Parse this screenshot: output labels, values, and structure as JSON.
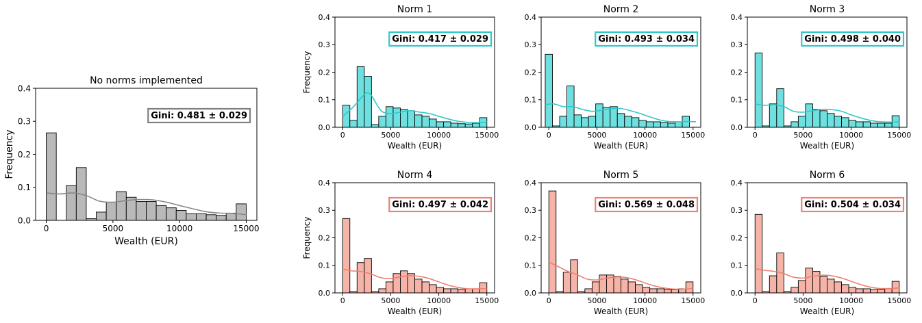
{
  "colors": {
    "gray_fill": "#b9b9b9",
    "gray_line": "#888888",
    "gray_box": "#7f7f7f",
    "teal_fill": "#6fe0e0",
    "teal_line": "#2ec8c8",
    "teal_box": "#2ec8c8",
    "salmon_fill": "#f6b3a8",
    "salmon_line": "#f08070",
    "salmon_box": "#f08070"
  },
  "chart_data": [
    {
      "type": "bar",
      "id": "no_norms",
      "title": "No norms implemented",
      "xlabel": "Wealth (EUR)",
      "ylabel": "Frequency",
      "annotation": "Gini: 0.481 ± 0.029",
      "color_key": "gray",
      "xlim": [
        -800,
        15800
      ],
      "ylim": [
        0,
        0.4
      ],
      "xticks": [
        0,
        5000,
        10000,
        15000
      ],
      "xticklabels": [
        "0",
        "5000",
        "10000",
        "15000"
      ],
      "yticks": [
        0.0,
        0.1,
        0.2,
        0.3,
        0.4
      ],
      "yticklabels": [
        "0.0",
        "0.1",
        "0.2",
        "0.3",
        "0.4"
      ],
      "bin_start": 0,
      "bin_width": 750,
      "values": [
        0.265,
        0,
        0.105,
        0.16,
        0.005,
        0.025,
        0.055,
        0.087,
        0.07,
        0.057,
        0.057,
        0.045,
        0.038,
        0.03,
        0.02,
        0.02,
        0.017,
        0.015,
        0.022,
        0.05
      ],
      "kde_x": [
        0,
        1000,
        2000,
        3000,
        4000,
        5000,
        6000,
        7000,
        8000,
        9000,
        10000,
        11000,
        12000,
        13000,
        14000,
        15000
      ],
      "kde_y": [
        0.083,
        0.08,
        0.083,
        0.075,
        0.058,
        0.055,
        0.06,
        0.063,
        0.062,
        0.055,
        0.045,
        0.035,
        0.026,
        0.022,
        0.021,
        0.017
      ]
    },
    {
      "type": "bar",
      "id": "norm1",
      "title": "Norm 1",
      "xlabel": "Wealth (EUR)",
      "ylabel": "Frequency",
      "annotation": "Gini: 0.417 ± 0.029",
      "color_key": "teal",
      "xlim": [
        -800,
        15800
      ],
      "ylim": [
        0,
        0.4
      ],
      "xticks": [
        0,
        5000,
        10000,
        15000
      ],
      "xticklabels": [
        "0",
        "5000",
        "10000",
        "15000"
      ],
      "yticks": [
        0.0,
        0.1,
        0.2,
        0.3,
        0.4
      ],
      "yticklabels": [
        "0.0",
        "0.1",
        "0.2",
        "0.3",
        "0.4"
      ],
      "bin_start": 0,
      "bin_width": 750,
      "values": [
        0.08,
        0.025,
        0.22,
        0.185,
        0.01,
        0.04,
        0.075,
        0.07,
        0.065,
        0.06,
        0.045,
        0.04,
        0.03,
        0.02,
        0.02,
        0.015,
        0.013,
        0.012,
        0.015,
        0.035
      ],
      "kde_x": [
        0,
        1000,
        2000,
        2500,
        3000,
        4000,
        5000,
        6000,
        7000,
        8000,
        9000,
        10000,
        11000,
        12000,
        13000,
        14000,
        15000
      ],
      "kde_y": [
        0.04,
        0.07,
        0.11,
        0.125,
        0.115,
        0.06,
        0.05,
        0.055,
        0.06,
        0.055,
        0.05,
        0.04,
        0.03,
        0.022,
        0.018,
        0.017,
        0.018
      ]
    },
    {
      "type": "bar",
      "id": "norm2",
      "title": "Norm 2",
      "xlabel": "Wealth (EUR)",
      "ylabel": "",
      "annotation": "Gini: 0.493 ± 0.034",
      "color_key": "teal",
      "xlim": [
        -800,
        15800
      ],
      "ylim": [
        0,
        0.4
      ],
      "xticks": [
        0,
        5000,
        10000,
        15000
      ],
      "xticklabels": [
        "0",
        "5000",
        "10000",
        "15000"
      ],
      "yticks": [
        0.0,
        0.1,
        0.2,
        0.3,
        0.4
      ],
      "yticklabels": [
        "0.0",
        "0.1",
        "0.2",
        "0.3",
        "0.4"
      ],
      "bin_start": -375,
      "bin_width": 750,
      "values": [
        0.265,
        0.005,
        0.04,
        0.15,
        0.045,
        0.035,
        0.04,
        0.085,
        0.072,
        0.075,
        0.05,
        0.04,
        0.035,
        0.025,
        0.02,
        0.02,
        0.018,
        0.015,
        0.02,
        0.04
      ],
      "kde_x": [
        -375,
        500,
        1500,
        2500,
        3500,
        4500,
        5500,
        6500,
        7500,
        8500,
        9500,
        10500,
        11500,
        12500,
        13500,
        14500,
        15300
      ],
      "kde_y": [
        0.082,
        0.085,
        0.075,
        0.075,
        0.065,
        0.058,
        0.062,
        0.068,
        0.068,
        0.06,
        0.05,
        0.038,
        0.027,
        0.021,
        0.02,
        0.021,
        0.02
      ]
    },
    {
      "type": "bar",
      "id": "norm3",
      "title": "Norm 3",
      "xlabel": "Wealth (EUR)",
      "ylabel": "",
      "annotation": "Gini: 0.498 ± 0.040",
      "color_key": "teal",
      "xlim": [
        -800,
        15800
      ],
      "ylim": [
        0,
        0.4
      ],
      "xticks": [
        0,
        5000,
        10000,
        15000
      ],
      "xticklabels": [
        "0",
        "5000",
        "10000",
        "15000"
      ],
      "yticks": [
        0.0,
        0.1,
        0.2,
        0.3,
        0.4
      ],
      "yticklabels": [
        "0.0",
        "0.1",
        "0.2",
        "0.3",
        "0.4"
      ],
      "bin_start": 0,
      "bin_width": 750,
      "values": [
        0.27,
        0.005,
        0.085,
        0.14,
        0.005,
        0.02,
        0.04,
        0.085,
        0.065,
        0.06,
        0.05,
        0.04,
        0.035,
        0.025,
        0.02,
        0.02,
        0.015,
        0.015,
        0.015,
        0.042
      ],
      "kde_x": [
        0,
        1000,
        2000,
        3000,
        4000,
        5000,
        6000,
        7000,
        8000,
        9000,
        10000,
        11000,
        12000,
        13000,
        14000,
        15000
      ],
      "kde_y": [
        0.085,
        0.08,
        0.082,
        0.075,
        0.058,
        0.055,
        0.06,
        0.065,
        0.064,
        0.058,
        0.045,
        0.034,
        0.025,
        0.02,
        0.019,
        0.02
      ]
    },
    {
      "type": "bar",
      "id": "norm4",
      "title": "Norm 4",
      "xlabel": "Wealth (EUR)",
      "ylabel": "Frequency",
      "annotation": "Gini: 0.497 ± 0.042",
      "color_key": "salmon",
      "xlim": [
        -800,
        15800
      ],
      "ylim": [
        0,
        0.4
      ],
      "xticks": [
        0,
        5000,
        10000,
        15000
      ],
      "xticklabels": [
        "0",
        "5000",
        "10000",
        "15000"
      ],
      "yticks": [
        0.0,
        0.1,
        0.2,
        0.3,
        0.4
      ],
      "yticklabels": [
        "0.0",
        "0.1",
        "0.2",
        "0.3",
        "0.4"
      ],
      "bin_start": 0,
      "bin_width": 750,
      "values": [
        0.27,
        0.005,
        0.11,
        0.125,
        0.005,
        0.015,
        0.04,
        0.07,
        0.08,
        0.07,
        0.05,
        0.04,
        0.03,
        0.02,
        0.015,
        0.015,
        0.013,
        0.015,
        0.015,
        0.037
      ],
      "kde_x": [
        0,
        1000,
        2000,
        3000,
        4000,
        5000,
        6000,
        7000,
        8000,
        9000,
        10000,
        11000,
        12000,
        13000,
        14000,
        15000
      ],
      "kde_y": [
        0.086,
        0.08,
        0.077,
        0.068,
        0.055,
        0.052,
        0.058,
        0.062,
        0.06,
        0.052,
        0.04,
        0.028,
        0.02,
        0.015,
        0.015,
        0.016
      ]
    },
    {
      "type": "bar",
      "id": "norm5",
      "title": "Norm 5",
      "xlabel": "Wealth (EUR)",
      "ylabel": "",
      "annotation": "Gini: 0.569 ± 0.048",
      "color_key": "salmon",
      "xlim": [
        -800,
        15800
      ],
      "ylim": [
        0,
        0.4
      ],
      "xticks": [
        0,
        5000,
        10000,
        15000
      ],
      "xticklabels": [
        "0",
        "5000",
        "10000",
        "15000"
      ],
      "yticks": [
        0.0,
        0.1,
        0.2,
        0.3,
        0.4
      ],
      "yticklabels": [
        "0.0",
        "0.1",
        "0.2",
        "0.3",
        "0.4"
      ],
      "bin_start": 0,
      "bin_width": 750,
      "values": [
        0.37,
        0.005,
        0.075,
        0.12,
        0.005,
        0.015,
        0.04,
        0.065,
        0.065,
        0.06,
        0.05,
        0.04,
        0.03,
        0.02,
        0.015,
        0.015,
        0.012,
        0.012,
        0.015,
        0.04
      ],
      "kde_x": [
        0,
        1000,
        2000,
        3000,
        4000,
        5000,
        6000,
        7000,
        8000,
        9000,
        10000,
        11000,
        12000,
        13000,
        14000,
        15000
      ],
      "kde_y": [
        0.112,
        0.095,
        0.078,
        0.065,
        0.05,
        0.047,
        0.053,
        0.058,
        0.056,
        0.048,
        0.036,
        0.025,
        0.018,
        0.014,
        0.014,
        0.016
      ]
    },
    {
      "type": "bar",
      "id": "norm6",
      "title": "Norm 6",
      "xlabel": "Wealth (EUR)",
      "ylabel": "",
      "annotation": "Gini: 0.504 ± 0.034",
      "color_key": "salmon",
      "xlim": [
        -800,
        15800
      ],
      "ylim": [
        0,
        0.4
      ],
      "xticks": [
        0,
        5000,
        10000,
        15000
      ],
      "xticklabels": [
        "0",
        "5000",
        "10000",
        "15000"
      ],
      "yticks": [
        0.0,
        0.1,
        0.2,
        0.3,
        0.4
      ],
      "yticklabels": [
        "0.0",
        "0.1",
        "0.2",
        "0.3",
        "0.4"
      ],
      "bin_start": 0,
      "bin_width": 750,
      "values": [
        0.285,
        0.005,
        0.062,
        0.145,
        0.005,
        0.02,
        0.045,
        0.09,
        0.078,
        0.06,
        0.05,
        0.04,
        0.03,
        0.02,
        0.015,
        0.015,
        0.012,
        0.012,
        0.015,
        0.042
      ],
      "kde_x": [
        0,
        1000,
        2000,
        3000,
        4000,
        5000,
        6000,
        7000,
        8000,
        9000,
        10000,
        11000,
        12000,
        13000,
        14000,
        15000
      ],
      "kde_y": [
        0.088,
        0.082,
        0.078,
        0.07,
        0.057,
        0.054,
        0.06,
        0.064,
        0.062,
        0.054,
        0.042,
        0.03,
        0.021,
        0.016,
        0.016,
        0.018
      ]
    }
  ]
}
